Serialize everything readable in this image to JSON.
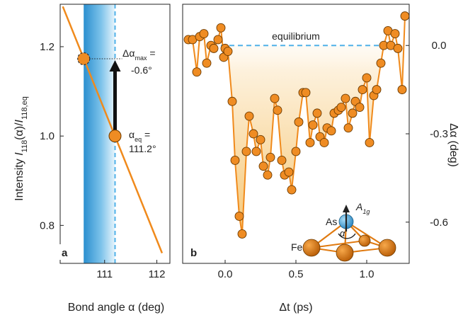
{
  "chart_data": [
    {
      "panel": "a",
      "type": "line",
      "ylabel_parts": [
        "Intensity ",
        "I",
        "118",
        "(α)/",
        "I",
        "118,eq"
      ],
      "xlabel": "Bond angle α (deg)",
      "xlim": [
        110.15,
        112.25
      ],
      "ylim": [
        0.715,
        1.295
      ],
      "xticks": [
        111,
        112
      ],
      "yticks": [
        0.8,
        1.0,
        1.2
      ],
      "ytick_labels": [
        "0.8",
        "1.0",
        "1.2"
      ],
      "xtick_labels": [
        "111",
        "112"
      ],
      "line": {
        "x": [
          110.2,
          112.1
        ],
        "y": [
          1.29,
          0.738
        ]
      },
      "points": [
        {
          "x": 110.6,
          "y": 1.173,
          "style": "dashed-outline"
        },
        {
          "x": 111.2,
          "y": 1.0,
          "style": "solid"
        }
      ],
      "shaded_band": [
        110.6,
        111.2
      ],
      "vline_dashed": 111.2,
      "arrow": {
        "x": 111.2,
        "y_from": 1.0,
        "y_to": 1.173
      },
      "annotations": {
        "dmax": {
          "main": "Δα",
          "sub": "max",
          "suffix": " =",
          "value": "-0.6°"
        },
        "eq": {
          "main": "α",
          "sub": "eq",
          "suffix": " =",
          "value": "111.2°"
        }
      }
    },
    {
      "panel": "b",
      "type": "line",
      "xlabel": "Δt (ps)",
      "ylabel": "Δα (deg)",
      "xlim": [
        -0.3,
        1.3
      ],
      "ylim": [
        -0.74,
        0.14
      ],
      "xticks": [
        0.0,
        0.5,
        1.0
      ],
      "xtick_labels": [
        "0.0",
        "0.5",
        "1.0"
      ],
      "yticks": [
        0.0,
        -0.3,
        -0.6
      ],
      "ytick_labels": [
        "0.0",
        "-0.3",
        "-0.6"
      ],
      "equilibrium_label": "equilibrium",
      "x": [
        -0.26,
        -0.23,
        -0.2,
        -0.18,
        -0.15,
        -0.13,
        -0.1,
        -0.08,
        -0.05,
        -0.03,
        -0.01,
        0.0,
        0.02,
        0.05,
        0.07,
        0.1,
        0.12,
        0.15,
        0.17,
        0.2,
        0.22,
        0.25,
        0.27,
        0.3,
        0.32,
        0.35,
        0.37,
        0.4,
        0.42,
        0.45,
        0.47,
        0.5,
        0.52,
        0.55,
        0.57,
        0.6,
        0.62,
        0.65,
        0.67,
        0.7,
        0.72,
        0.75,
        0.77,
        0.8,
        0.82,
        0.85,
        0.87,
        0.9,
        0.92,
        0.95,
        0.97,
        1.0,
        1.02,
        1.05,
        1.07,
        1.1,
        1.12,
        1.15,
        1.17,
        1.2,
        1.22,
        1.25,
        1.27
      ],
      "y": [
        0.02,
        0.02,
        -0.09,
        0.03,
        0.04,
        -0.06,
        0.0,
        -0.01,
        0.02,
        0.06,
        -0.04,
        -0.01,
        -0.02,
        -0.19,
        -0.39,
        -0.58,
        -0.64,
        -0.36,
        -0.24,
        -0.3,
        -0.36,
        -0.32,
        -0.41,
        -0.44,
        -0.38,
        -0.18,
        -0.22,
        -0.39,
        -0.44,
        -0.43,
        -0.49,
        -0.36,
        -0.26,
        -0.16,
        -0.16,
        -0.33,
        -0.27,
        -0.23,
        -0.31,
        -0.33,
        -0.28,
        -0.29,
        -0.23,
        -0.22,
        -0.21,
        -0.18,
        -0.28,
        -0.23,
        -0.19,
        -0.21,
        -0.15,
        -0.11,
        -0.33,
        -0.17,
        -0.15,
        -0.06,
        0.0,
        0.05,
        0.0,
        0.04,
        -0.01,
        -0.15,
        0.1
      ],
      "inset": {
        "as_label": "As",
        "fe_label": "Fe",
        "alpha_label": "α",
        "mode_main": "A",
        "mode_sub": "1g"
      }
    }
  ],
  "colors": {
    "orange": "#f08a1c",
    "marker_fill": "#ef8c23",
    "marker_edge": "#6b3a00",
    "blue_band": "#3aa0d8",
    "blue_dashed": "#4fb1e8",
    "as_atom": "#4aa9e0",
    "fe_atom": "#e07a10"
  }
}
